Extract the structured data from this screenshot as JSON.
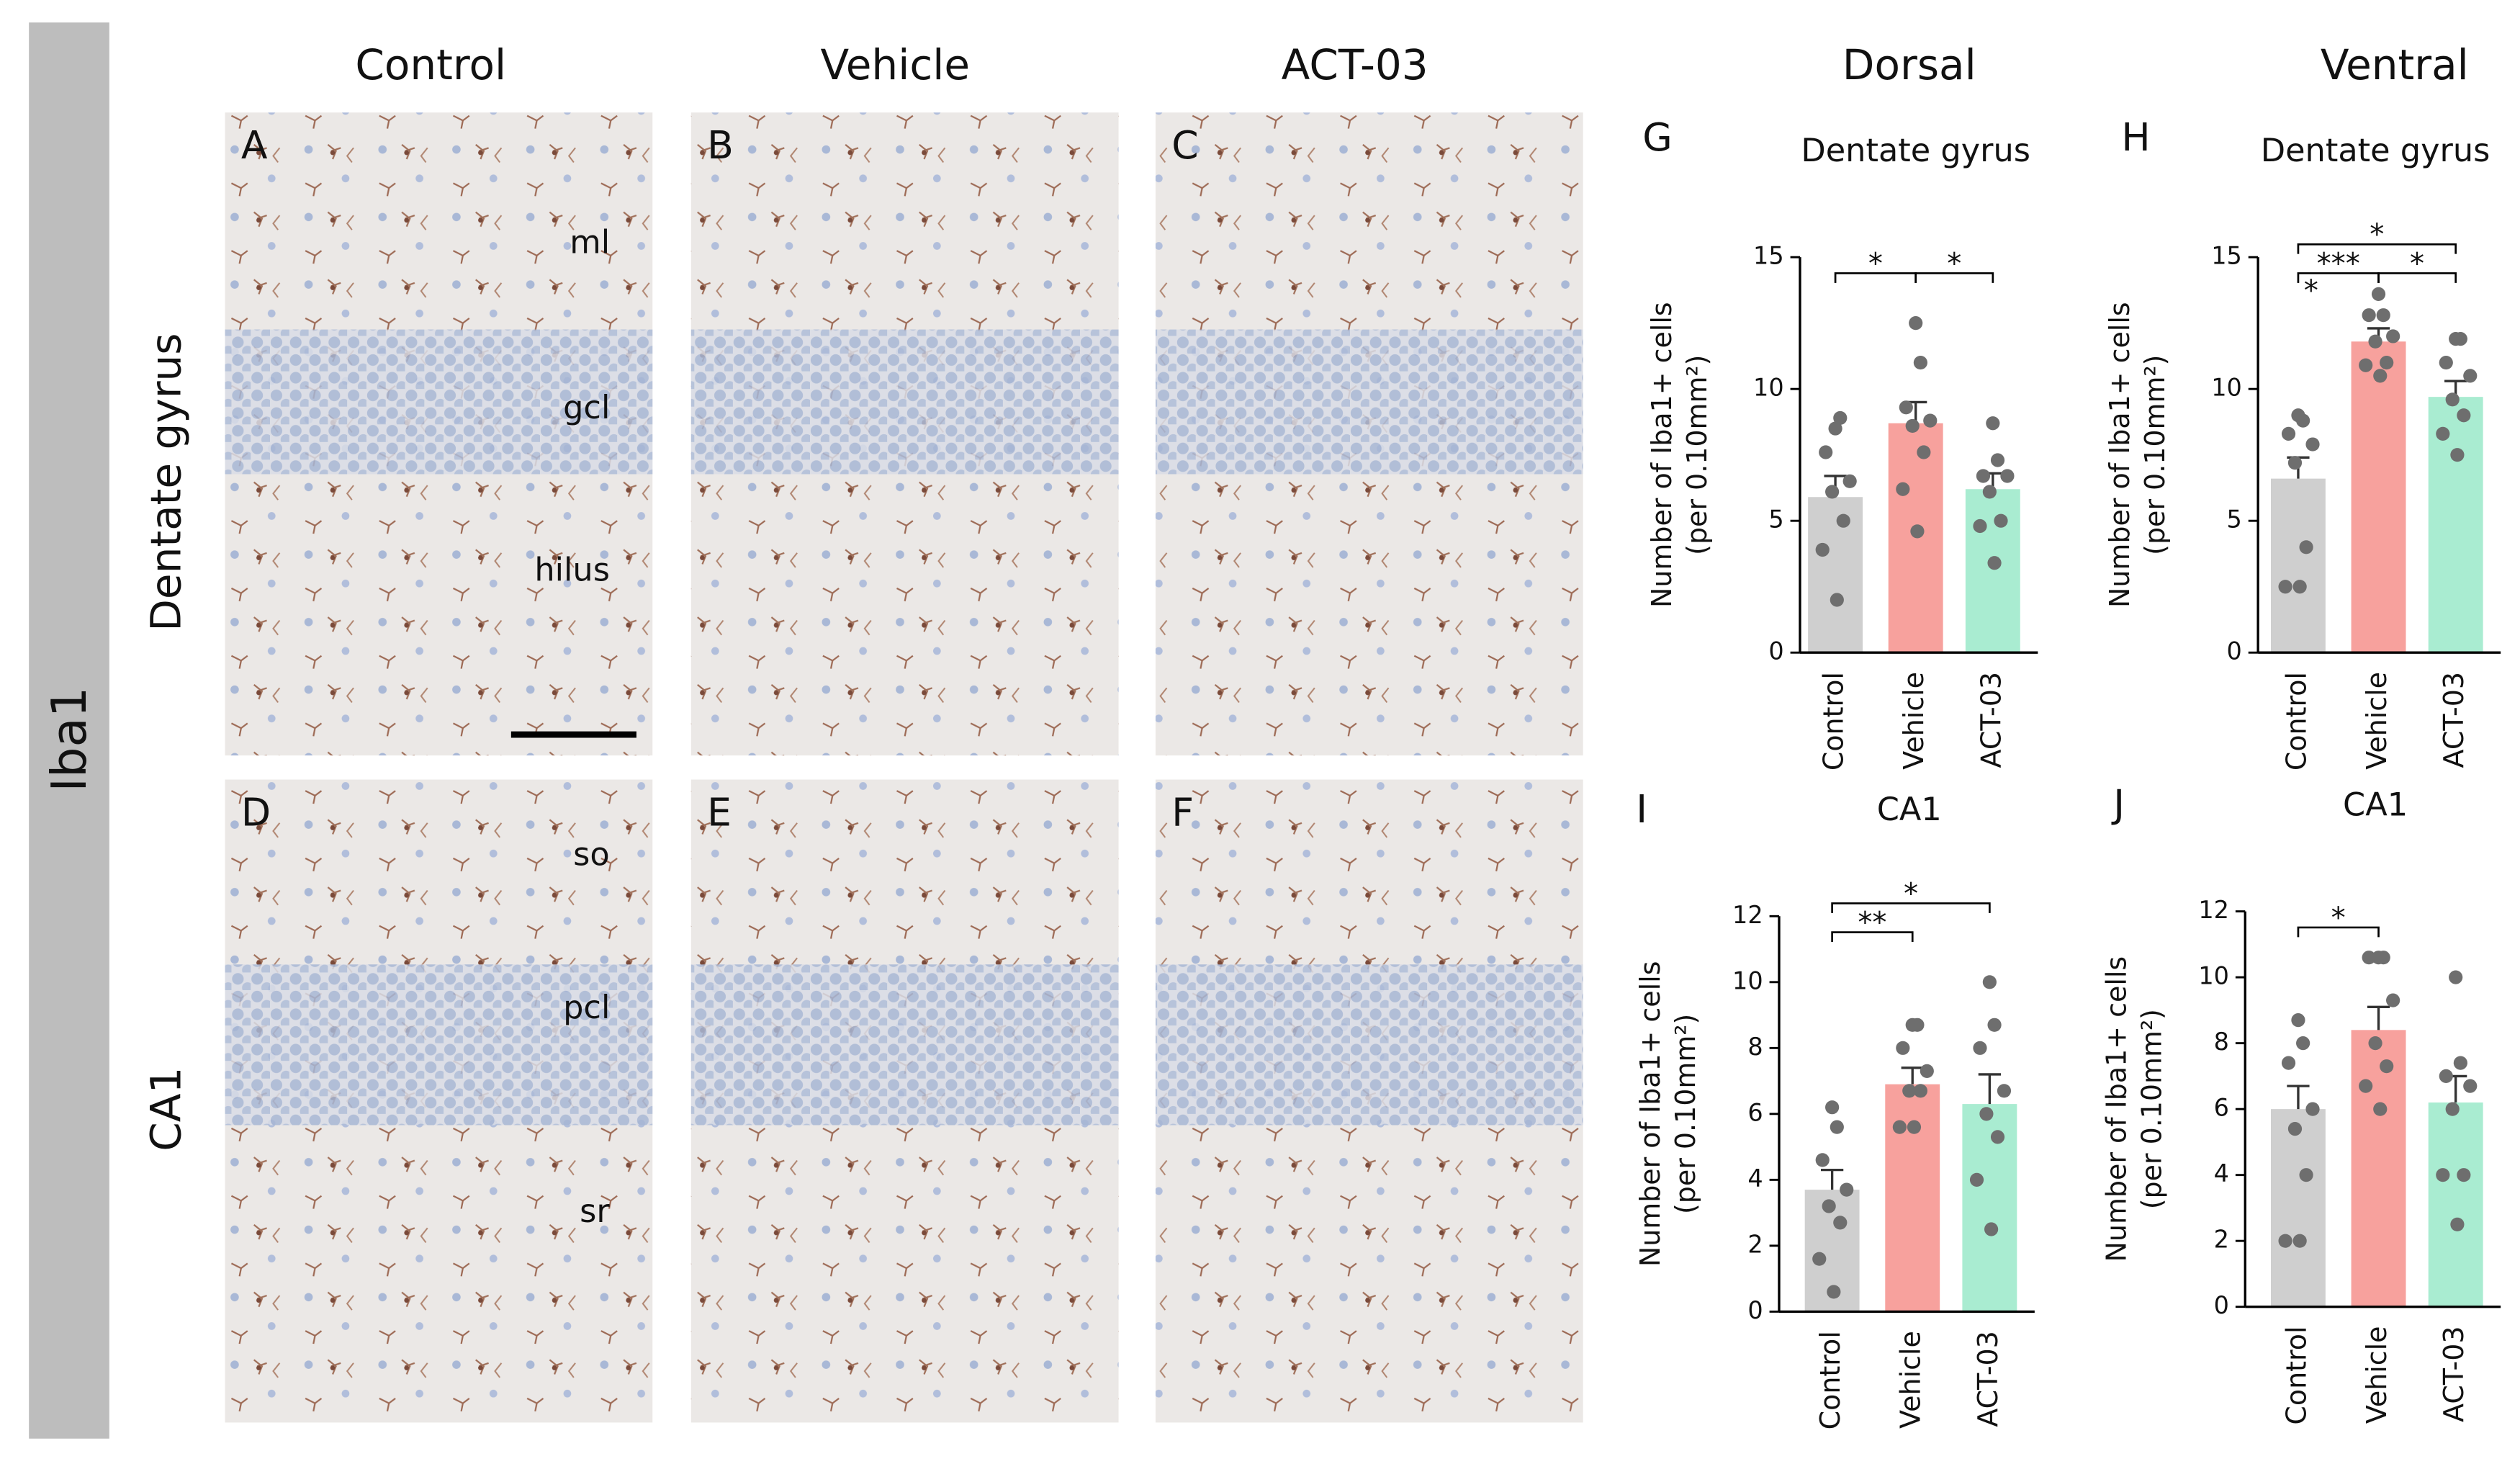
{
  "figure": {
    "side_label": "Iba1",
    "column_titles": [
      "Control",
      "Vehicle",
      "ACT-03",
      "Dorsal",
      "Ventral"
    ],
    "row_titles": [
      "Dentate gyrus",
      "CA1"
    ],
    "panels": [
      {
        "letter": "A",
        "labels": [
          "ml",
          "gcl",
          "hilus"
        ]
      },
      {
        "letter": "B"
      },
      {
        "letter": "C"
      },
      {
        "letter": "D",
        "labels": [
          "so",
          "pcl",
          "sr"
        ]
      },
      {
        "letter": "E"
      },
      {
        "letter": "F"
      }
    ]
  },
  "chart_data": [
    {
      "type": "bar",
      "panel": "G",
      "title": "Dentate gyrus",
      "ylabel": [
        "Number of Iba1+ cells",
        "(per 0.10mm²)"
      ],
      "categories": [
        "Control",
        "Vehicle",
        "ACT-03"
      ],
      "colors": [
        "#cfcfcf",
        "#f7a19d",
        "#a9ecd1"
      ],
      "values": [
        5.9,
        8.7,
        6.2
      ],
      "errors": [
        0.8,
        0.8,
        0.6
      ],
      "points": [
        [
          8.5,
          8.9,
          7.6,
          6.5,
          6.1,
          5.0,
          3.9,
          2.0
        ],
        [
          12.5,
          11.0,
          9.3,
          8.8,
          8.6,
          7.6,
          6.2,
          4.6
        ],
        [
          8.7,
          7.3,
          6.7,
          6.7,
          6.1,
          5.0,
          4.8,
          3.4
        ]
      ],
      "significance": [
        {
          "from": "Control",
          "to": "Vehicle",
          "label": "*"
        },
        {
          "from": "Vehicle",
          "to": "ACT-03",
          "label": "*"
        }
      ],
      "ylim": [
        0,
        15
      ],
      "yticks": [
        0,
        5,
        10,
        15
      ]
    },
    {
      "type": "bar",
      "panel": "H",
      "title": "Dentate gyrus",
      "ylabel": [
        "Number of Iba1+ cells",
        "(per 0.10mm²)"
      ],
      "categories": [
        "Control",
        "Vehicle",
        "ACT-03"
      ],
      "colors": [
        "#cfcfcf",
        "#f7a19d",
        "#a9ecd1"
      ],
      "values": [
        6.6,
        11.8,
        9.7
      ],
      "errors": [
        0.8,
        0.5,
        0.6
      ],
      "points": [
        [
          9.0,
          8.8,
          8.3,
          7.9,
          7.2,
          4.0,
          2.5,
          2.5
        ],
        [
          13.6,
          12.8,
          12.8,
          12.0,
          11.8,
          11.0,
          10.9,
          10.5
        ],
        [
          11.9,
          11.9,
          11.0,
          10.5,
          9.6,
          9.0,
          8.3,
          7.5
        ]
      ],
      "note": "*",
      "significance": [
        {
          "from": "Control",
          "to": "Vehicle",
          "label": "***"
        },
        {
          "from": "Vehicle",
          "to": "ACT-03",
          "label": "*"
        },
        {
          "from": "Control",
          "to": "ACT-03",
          "label": "*"
        }
      ],
      "ylim": [
        0,
        15
      ],
      "yticks": [
        0,
        5,
        10,
        15
      ]
    },
    {
      "type": "bar",
      "panel": "I",
      "title": "CA1",
      "ylabel": [
        "Number of Iba1+ cells",
        "(per 0.10mm²)"
      ],
      "categories": [
        "Control",
        "Vehicle",
        "ACT-03"
      ],
      "colors": [
        "#cfcfcf",
        "#f7a19d",
        "#a9ecd1"
      ],
      "values": [
        3.7,
        6.9,
        6.3
      ],
      "errors": [
        0.6,
        0.5,
        0.9
      ],
      "points": [
        [
          6.2,
          5.6,
          4.6,
          3.7,
          3.2,
          2.7,
          1.6,
          0.6
        ],
        [
          8.7,
          8.7,
          8.0,
          7.3,
          6.7,
          6.7,
          5.6,
          5.6
        ],
        [
          10.0,
          8.7,
          8.0,
          6.7,
          6.0,
          5.3,
          4.0,
          2.5
        ]
      ],
      "significance": [
        {
          "from": "Control",
          "to": "Vehicle",
          "label": "**"
        },
        {
          "from": "Control",
          "to": "ACT-03",
          "label": "*"
        }
      ],
      "ylim": [
        0,
        12
      ],
      "yticks": [
        0,
        2,
        4,
        6,
        8,
        10,
        12
      ]
    },
    {
      "type": "bar",
      "panel": "J",
      "title": "CA1",
      "ylabel": [
        "Number of Iba1+ cells",
        "(per 0.10mm²)"
      ],
      "categories": [
        "Control",
        "Vehicle",
        "ACT-03"
      ],
      "colors": [
        "#cfcfcf",
        "#f7a19d",
        "#a9ecd1"
      ],
      "values": [
        6.0,
        8.4,
        6.2
      ],
      "errors": [
        0.7,
        0.7,
        0.8
      ],
      "points": [
        [
          8.7,
          8.0,
          7.4,
          6.0,
          5.4,
          4.0,
          2.0,
          2.0
        ],
        [
          10.6,
          10.6,
          10.6,
          9.3,
          8.0,
          7.3,
          6.7,
          6.0
        ],
        [
          10.0,
          7.4,
          7.0,
          6.7,
          6.0,
          4.0,
          4.0,
          2.5
        ]
      ],
      "significance": [
        {
          "from": "Control",
          "to": "Vehicle",
          "label": "*"
        }
      ],
      "ylim": [
        0,
        12
      ],
      "yticks": [
        0,
        2,
        4,
        6,
        8,
        10,
        12
      ]
    }
  ]
}
